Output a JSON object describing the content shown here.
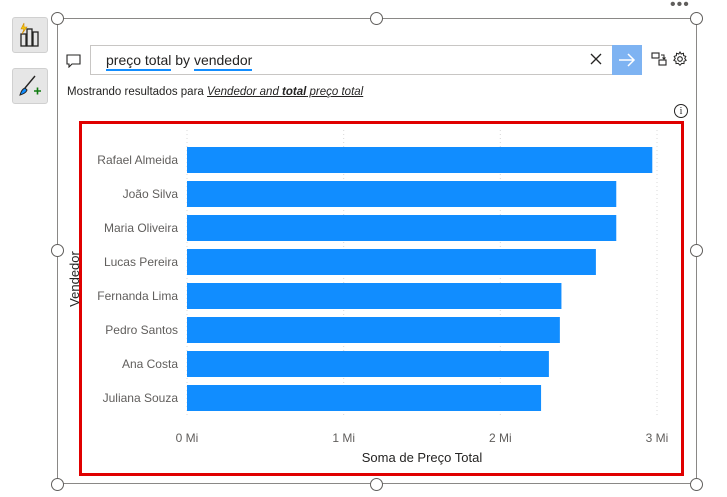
{
  "qna": {
    "query_parts": [
      {
        "text": "preço total",
        "underlined": true
      },
      {
        "text": " by ",
        "underlined": false
      },
      {
        "text": "vendedor",
        "underlined": true
      }
    ],
    "showing_prefix": "Mostrando resultados para",
    "showing_result_1": "Vendedor and ",
    "showing_result_bold": "total",
    "showing_result_2": " preço total"
  },
  "icons": {
    "side_1": "quick-insights-icon",
    "side_2": "format-brush-add-icon",
    "comment": "comment-icon",
    "clear": "close-icon",
    "submit": "arrow-right-icon",
    "convert": "convert-visual-icon",
    "settings": "gear-icon",
    "info": "info-icon",
    "more": "more-options-icon"
  },
  "colors": {
    "bar": "#118dff",
    "highlight_border": "#e00000",
    "submit_bg": "#7eb3f2"
  },
  "chart_data": {
    "type": "bar",
    "orientation": "horizontal",
    "categories": [
      "Rafael Almeida",
      "João Silva",
      "Maria Oliveira",
      "Lucas Pereira",
      "Fernanda Lima",
      "Pedro Santos",
      "Ana Costa",
      "Juliana Souza"
    ],
    "values": [
      2.97,
      2.74,
      2.74,
      2.61,
      2.39,
      2.38,
      2.31,
      2.26
    ],
    "value_unit": "Mi",
    "xlabel": "Soma de Preço Total",
    "ylabel": "Vendedor",
    "xticks": [
      "0 Mi",
      "1 Mi",
      "2 Mi",
      "3 Mi"
    ],
    "xtick_values": [
      0,
      1,
      2,
      3
    ],
    "xlim": [
      0,
      3
    ],
    "grid": true
  }
}
